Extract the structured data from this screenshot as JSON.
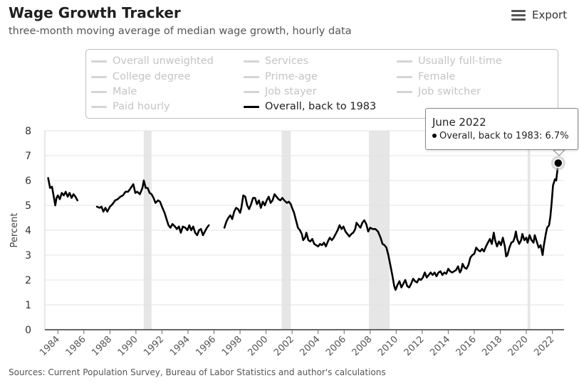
{
  "title": "Wage Growth Tracker",
  "subtitle": "three-month moving average of median wage growth, hourly data",
  "export_label": "Export",
  "source": "Sources: Current Population Survey, Bureau of Labor Statistics and author's calculations",
  "legend": [
    "Overall unweighted",
    "Services",
    "Usually full-time",
    "College degree",
    "Prime-age",
    "Female",
    "Male",
    "Job stayer",
    "Job switcher",
    "Paid hourly",
    "Overall, back to 1983"
  ],
  "tooltip": {
    "title": "June 2022",
    "line": "Overall, back to 1983: 6.7%"
  },
  "chart_data": {
    "type": "line",
    "title": "Wage Growth Tracker",
    "ylabel": "Percent",
    "xlabel": "",
    "ylim": [
      0,
      8
    ],
    "xlim": [
      1983.0,
      2022.9
    ],
    "yticks": [
      "0",
      "1",
      "2",
      "3",
      "4",
      "5",
      "6",
      "7",
      "8"
    ],
    "xticks": [
      "1984",
      "1986",
      "1988",
      "1990",
      "1992",
      "1994",
      "1996",
      "1998",
      "2000",
      "2002",
      "2004",
      "2006",
      "2008",
      "2010",
      "2012",
      "2014",
      "2016",
      "2018",
      "2020",
      "2022"
    ],
    "recessions": [
      [
        1990.6,
        1991.2
      ],
      [
        2001.2,
        2001.9
      ],
      [
        2007.9,
        2009.5
      ],
      [
        2020.1,
        2020.3
      ]
    ],
    "grid": true,
    "line_color": "#000000",
    "series": [
      {
        "name": "Overall, back to 1983",
        "segments": [
          [
            [
              1983.25,
              6.1
            ],
            [
              1983.4,
              5.7
            ],
            [
              1983.55,
              5.75
            ],
            [
              1983.7,
              5.3
            ],
            [
              1983.8,
              5.0
            ],
            [
              1983.9,
              5.3
            ],
            [
              1984.0,
              5.4
            ],
            [
              1984.15,
              5.25
            ],
            [
              1984.3,
              5.5
            ],
            [
              1984.45,
              5.4
            ],
            [
              1984.6,
              5.55
            ],
            [
              1984.75,
              5.35
            ],
            [
              1984.9,
              5.5
            ],
            [
              1985.05,
              5.3
            ],
            [
              1985.2,
              5.45
            ],
            [
              1985.35,
              5.35
            ],
            [
              1985.5,
              5.2
            ]
          ],
          [
            [
              1987.0,
              4.95
            ],
            [
              1987.2,
              4.9
            ],
            [
              1987.35,
              4.95
            ],
            [
              1987.5,
              4.75
            ],
            [
              1987.65,
              4.9
            ],
            [
              1987.8,
              4.75
            ],
            [
              1988.0,
              4.95
            ],
            [
              1988.2,
              5.05
            ],
            [
              1988.4,
              5.2
            ],
            [
              1988.6,
              5.25
            ],
            [
              1988.8,
              5.35
            ],
            [
              1989.0,
              5.4
            ],
            [
              1989.2,
              5.55
            ],
            [
              1989.4,
              5.55
            ],
            [
              1989.6,
              5.7
            ],
            [
              1989.8,
              5.85
            ],
            [
              1989.95,
              5.5
            ],
            [
              1990.1,
              5.55
            ],
            [
              1990.3,
              5.45
            ],
            [
              1990.5,
              5.7
            ],
            [
              1990.6,
              6.0
            ],
            [
              1990.75,
              5.7
            ],
            [
              1990.9,
              5.7
            ],
            [
              1991.05,
              5.5
            ],
            [
              1991.2,
              5.45
            ],
            [
              1991.35,
              5.3
            ],
            [
              1991.5,
              5.1
            ],
            [
              1991.7,
              5.2
            ],
            [
              1991.85,
              5.15
            ],
            [
              1992.0,
              4.95
            ],
            [
              1992.2,
              4.7
            ],
            [
              1992.35,
              4.45
            ],
            [
              1992.5,
              4.2
            ],
            [
              1992.65,
              4.1
            ],
            [
              1992.8,
              4.25
            ],
            [
              1993.0,
              4.15
            ],
            [
              1993.15,
              4.05
            ],
            [
              1993.3,
              4.15
            ],
            [
              1993.45,
              3.9
            ],
            [
              1993.6,
              4.15
            ],
            [
              1993.8,
              4.1
            ],
            [
              1993.95,
              4.0
            ],
            [
              1994.1,
              4.2
            ],
            [
              1994.25,
              4.0
            ],
            [
              1994.4,
              4.15
            ],
            [
              1994.55,
              3.9
            ],
            [
              1994.7,
              3.8
            ],
            [
              1994.85,
              4.0
            ],
            [
              1995.0,
              4.05
            ],
            [
              1995.15,
              3.8
            ],
            [
              1995.3,
              3.95
            ],
            [
              1995.45,
              4.1
            ],
            [
              1995.6,
              4.2
            ]
          ],
          [
            [
              1996.8,
              4.1
            ],
            [
              1996.95,
              4.35
            ],
            [
              1997.1,
              4.5
            ],
            [
              1997.25,
              4.6
            ],
            [
              1997.4,
              4.45
            ],
            [
              1997.55,
              4.75
            ],
            [
              1997.7,
              4.9
            ],
            [
              1997.85,
              4.85
            ],
            [
              1998.0,
              4.7
            ],
            [
              1998.1,
              4.9
            ],
            [
              1998.25,
              5.4
            ],
            [
              1998.4,
              5.35
            ],
            [
              1998.55,
              5.0
            ],
            [
              1998.7,
              4.85
            ],
            [
              1998.85,
              5.05
            ],
            [
              1999.0,
              5.3
            ],
            [
              1999.15,
              5.3
            ],
            [
              1999.3,
              5.05
            ],
            [
              1999.45,
              5.2
            ],
            [
              1999.6,
              4.9
            ],
            [
              1999.75,
              5.15
            ],
            [
              1999.9,
              5.0
            ],
            [
              2000.05,
              5.2
            ],
            [
              2000.2,
              5.35
            ],
            [
              2000.35,
              5.1
            ],
            [
              2000.5,
              5.2
            ],
            [
              2000.65,
              5.45
            ],
            [
              2000.8,
              5.35
            ],
            [
              2000.95,
              5.25
            ],
            [
              2001.1,
              5.2
            ],
            [
              2001.25,
              5.3
            ],
            [
              2001.4,
              5.2
            ],
            [
              2001.6,
              5.1
            ],
            [
              2001.75,
              5.15
            ],
            [
              2001.9,
              5.05
            ],
            [
              2002.0,
              4.9
            ],
            [
              2002.15,
              4.7
            ],
            [
              2002.3,
              4.4
            ],
            [
              2002.45,
              4.1
            ],
            [
              2002.6,
              4.0
            ],
            [
              2002.75,
              3.85
            ],
            [
              2002.85,
              3.6
            ],
            [
              2003.0,
              3.7
            ],
            [
              2003.1,
              3.9
            ],
            [
              2003.25,
              3.6
            ],
            [
              2003.4,
              3.55
            ],
            [
              2003.55,
              3.65
            ],
            [
              2003.7,
              3.45
            ],
            [
              2003.85,
              3.4
            ],
            [
              2004.0,
              3.35
            ],
            [
              2004.15,
              3.45
            ],
            [
              2004.3,
              3.4
            ],
            [
              2004.45,
              3.5
            ],
            [
              2004.6,
              3.35
            ],
            [
              2004.75,
              3.55
            ],
            [
              2004.9,
              3.7
            ],
            [
              2005.05,
              3.6
            ],
            [
              2005.2,
              3.7
            ],
            [
              2005.35,
              3.85
            ],
            [
              2005.5,
              4.0
            ],
            [
              2005.65,
              4.2
            ],
            [
              2005.8,
              4.05
            ],
            [
              2005.95,
              4.15
            ],
            [
              2006.1,
              3.95
            ],
            [
              2006.25,
              3.85
            ],
            [
              2006.4,
              3.75
            ],
            [
              2006.55,
              3.85
            ],
            [
              2006.7,
              3.9
            ],
            [
              2006.85,
              4.05
            ],
            [
              2006.95,
              4.3
            ],
            [
              2007.1,
              4.2
            ],
            [
              2007.25,
              4.1
            ],
            [
              2007.4,
              4.3
            ],
            [
              2007.55,
              4.4
            ],
            [
              2007.7,
              4.25
            ],
            [
              2007.85,
              3.95
            ],
            [
              2008.0,
              4.1
            ],
            [
              2008.2,
              4.05
            ],
            [
              2008.4,
              4.05
            ],
            [
              2008.6,
              3.95
            ],
            [
              2008.8,
              3.7
            ],
            [
              2008.95,
              3.45
            ],
            [
              2009.1,
              3.4
            ],
            [
              2009.25,
              3.3
            ],
            [
              2009.4,
              3.0
            ],
            [
              2009.55,
              2.6
            ],
            [
              2009.7,
              2.2
            ],
            [
              2009.85,
              1.75
            ],
            [
              2009.95,
              1.6
            ],
            [
              2010.1,
              1.8
            ],
            [
              2010.25,
              1.95
            ],
            [
              2010.4,
              1.7
            ],
            [
              2010.55,
              1.85
            ],
            [
              2010.7,
              2.0
            ],
            [
              2010.85,
              1.75
            ],
            [
              2011.0,
              1.7
            ],
            [
              2011.15,
              1.85
            ],
            [
              2011.3,
              2.05
            ],
            [
              2011.45,
              1.95
            ],
            [
              2011.6,
              1.9
            ],
            [
              2011.75,
              2.05
            ],
            [
              2011.9,
              2.0
            ],
            [
              2012.05,
              2.1
            ],
            [
              2012.2,
              2.3
            ],
            [
              2012.35,
              2.1
            ],
            [
              2012.5,
              2.2
            ],
            [
              2012.65,
              2.3
            ],
            [
              2012.8,
              2.2
            ],
            [
              2012.95,
              2.3
            ],
            [
              2013.1,
              2.15
            ],
            [
              2013.25,
              2.3
            ],
            [
              2013.4,
              2.35
            ],
            [
              2013.55,
              2.2
            ],
            [
              2013.7,
              2.3
            ],
            [
              2013.85,
              2.25
            ],
            [
              2014.0,
              2.45
            ],
            [
              2014.15,
              2.35
            ],
            [
              2014.3,
              2.3
            ],
            [
              2014.45,
              2.35
            ],
            [
              2014.6,
              2.4
            ],
            [
              2014.75,
              2.55
            ],
            [
              2014.9,
              2.3
            ],
            [
              2015.0,
              2.4
            ],
            [
              2015.1,
              2.65
            ],
            [
              2015.25,
              2.5
            ],
            [
              2015.4,
              2.45
            ],
            [
              2015.55,
              2.6
            ],
            [
              2015.7,
              2.9
            ],
            [
              2015.85,
              3.0
            ],
            [
              2016.0,
              3.05
            ],
            [
              2016.15,
              3.3
            ],
            [
              2016.3,
              3.2
            ],
            [
              2016.45,
              3.15
            ],
            [
              2016.6,
              3.25
            ],
            [
              2016.75,
              3.15
            ],
            [
              2016.9,
              3.35
            ],
            [
              2017.05,
              3.5
            ],
            [
              2017.2,
              3.65
            ],
            [
              2017.35,
              3.45
            ],
            [
              2017.5,
              3.9
            ],
            [
              2017.6,
              3.6
            ],
            [
              2017.75,
              3.35
            ],
            [
              2017.9,
              3.55
            ],
            [
              2018.05,
              3.4
            ],
            [
              2018.2,
              3.7
            ],
            [
              2018.35,
              3.35
            ],
            [
              2018.45,
              2.95
            ],
            [
              2018.55,
              3.0
            ],
            [
              2018.7,
              3.3
            ],
            [
              2018.85,
              3.5
            ],
            [
              2019.0,
              3.55
            ],
            [
              2019.1,
              3.7
            ],
            [
              2019.2,
              3.95
            ],
            [
              2019.3,
              3.65
            ],
            [
              2019.45,
              3.45
            ],
            [
              2019.6,
              3.6
            ],
            [
              2019.7,
              3.85
            ],
            [
              2019.85,
              3.6
            ],
            [
              2020.0,
              3.7
            ],
            [
              2020.1,
              3.5
            ],
            [
              2020.25,
              3.8
            ],
            [
              2020.4,
              3.6
            ],
            [
              2020.55,
              3.5
            ],
            [
              2020.65,
              3.8
            ],
            [
              2020.8,
              3.55
            ],
            [
              2020.95,
              3.3
            ],
            [
              2021.1,
              3.4
            ],
            [
              2021.25,
              3.0
            ],
            [
              2021.35,
              3.4
            ],
            [
              2021.5,
              3.85
            ],
            [
              2021.6,
              4.1
            ],
            [
              2021.75,
              4.2
            ],
            [
              2021.85,
              4.55
            ],
            [
              2021.95,
              5.1
            ],
            [
              2022.05,
              5.8
            ],
            [
              2022.2,
              6.05
            ],
            [
              2022.3,
              6.0
            ],
            [
              2022.45,
              6.7
            ]
          ]
        ]
      }
    ],
    "highlight": {
      "x": 2022.45,
      "y": 6.7
    }
  }
}
